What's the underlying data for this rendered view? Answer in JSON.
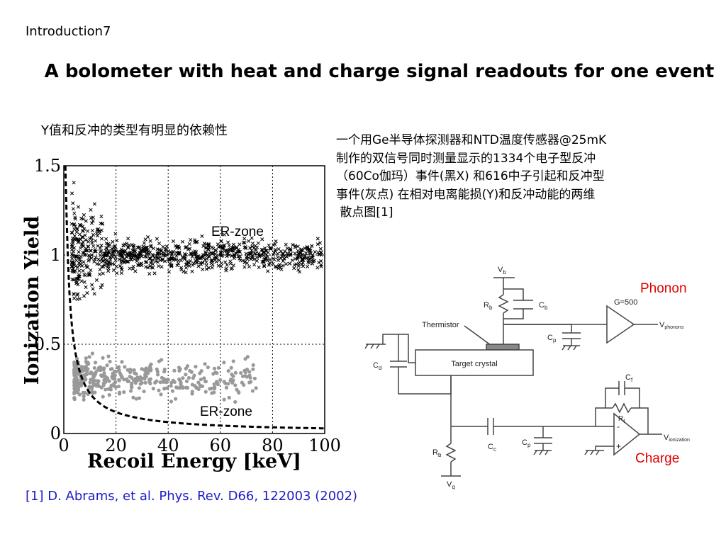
{
  "slide": {
    "section": "Introduction7",
    "title": "A bolometer with heat and charge signal readouts for one event",
    "note": "Y值和反冲的类型有明显的依赖性",
    "description_lines": [
      "一个用Ge半导体探测器和NTD温度传感器@25mK",
      "制作的双信号同时测量显示的1334个电子型反冲",
      "（60Co伽玛）事件(黑X) 和616中子引起和反冲型",
      "事件(灰点) 在相对电离能损(Y)和反冲动能的两维",
      " 散点图[1]"
    ],
    "reference": "[1] D. Abrams, et al. Phys. Rev. D66, 122003 (2002)"
  },
  "plot": {
    "ylabel": "Ionization Yield",
    "xlabel": "Recoil Energy [keV]",
    "xticks": [
      "0",
      "20",
      "40",
      "60",
      "80",
      "100"
    ],
    "yticks": [
      "0",
      "0.5",
      "1",
      "1.5"
    ],
    "zone_label_top": "ER-zone",
    "zone_label_bottom": "ER-zone"
  },
  "chart_data": {
    "type": "scatter",
    "xlabel": "Recoil Energy [keV]",
    "ylabel": "Ionization Yield",
    "xlim": [
      0,
      100
    ],
    "ylim": [
      0,
      1.5
    ],
    "grid": true,
    "series": [
      {
        "marker": "x",
        "color": "#000000",
        "count": 1334,
        "y_center": 1.0
      },
      {
        "marker": "dot",
        "color": "#999999",
        "count": 616,
        "y_center": 0.32
      },
      {
        "marker": "dashed-line",
        "color": "#000000"
      }
    ]
  },
  "circuit": {
    "phonon_label": "Phonon",
    "charge_label": "Charge",
    "thermistor": "Thermistor",
    "target_crystal": "Target crystal",
    "gain": "G=500",
    "vb": "V",
    "vb_sub": "b",
    "vq": "V",
    "vq_sub": "q",
    "vphonons": "V",
    "vphonons_sub": "phonons",
    "vionization": "V",
    "vionization_sub": "ionization",
    "rb": "R",
    "rb_sub": "b",
    "cb": "C",
    "cb_sub": "b",
    "cp": "C",
    "cp_sub": "p",
    "cd": "C",
    "cd_sub": "d",
    "cc": "C",
    "cc_sub": "c",
    "cf": "C",
    "cf_sub": "f",
    "rf": "R",
    "rf_sub": "f",
    "minus": "-",
    "plus": "+"
  },
  "colors": {
    "title": "#000000",
    "reference": "#1c1cc8",
    "label_red": "#e00000",
    "nr_points": "#999999"
  }
}
